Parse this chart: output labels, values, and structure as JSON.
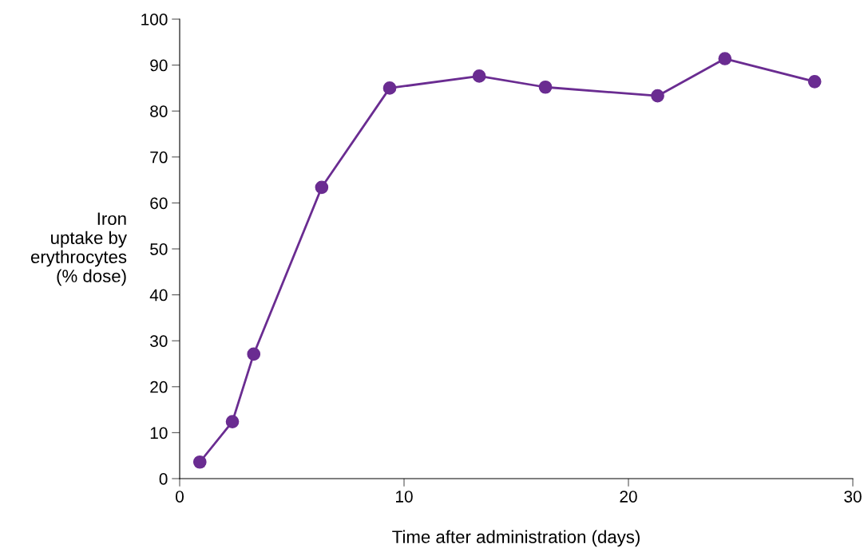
{
  "chart_data": {
    "type": "line",
    "xlabel": "Time after administration (days)",
    "ylabel": "Iron\nuptake by\nerythrocytes\n(% dose)",
    "x": [
      0.9,
      2.35,
      3.3,
      6.33,
      9.36,
      13.35,
      16.3,
      21.3,
      24.3,
      28.3
    ],
    "series": [
      {
        "color": "#6a2c91",
        "values": [
          3.6,
          12.4,
          27.1,
          63.4,
          85.0,
          87.6,
          85.2,
          83.3,
          91.4,
          86.4
        ]
      }
    ],
    "xlim": [
      0,
      30
    ],
    "xticks": [
      0,
      10,
      20,
      30
    ],
    "ylim": [
      0,
      100
    ],
    "yticks": [
      0,
      10,
      20,
      30,
      40,
      50,
      60,
      70,
      80,
      90,
      100
    ],
    "grid": false,
    "legend": false,
    "marker": "circle",
    "line_style": "solid"
  }
}
